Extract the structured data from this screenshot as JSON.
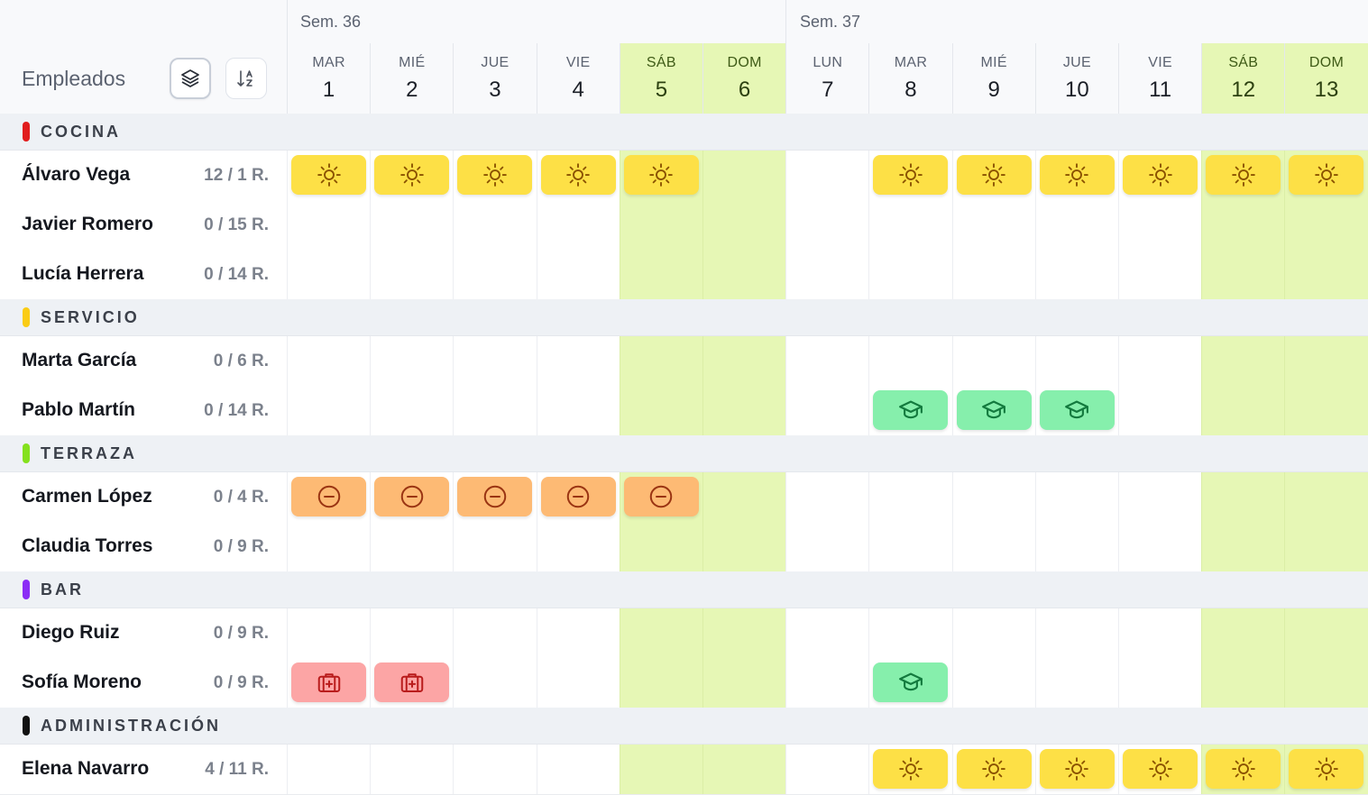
{
  "colors": {
    "weekend": "#e6f7b5",
    "vacation": "#fde046",
    "training": "#86efac",
    "absence": "#fdba74",
    "sick": "#fca5a5"
  },
  "icons": {
    "vacation": "sun-icon",
    "training": "graduation-cap-icon",
    "absence": "minus-circle-icon",
    "sick": "medical-kit-icon"
  },
  "header": {
    "employees_label": "Empleados",
    "group_toggle_icon": "layers-icon",
    "sort_icon": "sort-alpha-icon"
  },
  "weeks": [
    {
      "label": "Sem. 36"
    },
    {
      "label": "Sem. 37"
    }
  ],
  "days": [
    {
      "name": "MAR",
      "num": "1",
      "weekend": false
    },
    {
      "name": "MIÉ",
      "num": "2",
      "weekend": false
    },
    {
      "name": "JUE",
      "num": "3",
      "weekend": false
    },
    {
      "name": "VIE",
      "num": "4",
      "weekend": false
    },
    {
      "name": "SÁB",
      "num": "5",
      "weekend": true
    },
    {
      "name": "DOM",
      "num": "6",
      "weekend": true
    },
    {
      "name": "LUN",
      "num": "7",
      "weekend": false
    },
    {
      "name": "MAR",
      "num": "8",
      "weekend": false
    },
    {
      "name": "MIÉ",
      "num": "9",
      "weekend": false
    },
    {
      "name": "JUE",
      "num": "10",
      "weekend": false
    },
    {
      "name": "VIE",
      "num": "11",
      "weekend": false
    },
    {
      "name": "SÁB",
      "num": "12",
      "weekend": true
    },
    {
      "name": "DOM",
      "num": "13",
      "weekend": true
    }
  ],
  "groups": [
    {
      "name": "COCINA",
      "color": "#e11d1d",
      "employees": [
        {
          "name": "Álvaro Vega",
          "count": "12 / 1 R.",
          "cells": [
            "vacation",
            "vacation",
            "vacation",
            "vacation",
            "vacation",
            "",
            "",
            "vacation",
            "vacation",
            "vacation",
            "vacation",
            "vacation",
            "vacation"
          ]
        },
        {
          "name": "Javier Romero",
          "count": "0 / 15 R.",
          "cells": [
            "",
            "",
            "",
            "",
            "",
            "",
            "",
            "",
            "",
            "",
            "",
            "",
            ""
          ]
        },
        {
          "name": "Lucía Herrera",
          "count": "0 / 14 R.",
          "cells": [
            "",
            "",
            "",
            "",
            "",
            "",
            "",
            "",
            "",
            "",
            "",
            "",
            ""
          ]
        }
      ]
    },
    {
      "name": "SERVICIO",
      "color": "#facc15",
      "employees": [
        {
          "name": "Marta García",
          "count": "0 / 6 R.",
          "cells": [
            "",
            "",
            "",
            "",
            "",
            "",
            "",
            "",
            "",
            "",
            "",
            "",
            ""
          ]
        },
        {
          "name": "Pablo Martín",
          "count": "0 / 14 R.",
          "cells": [
            "",
            "",
            "",
            "",
            "",
            "",
            "",
            "training",
            "training",
            "training",
            "",
            "",
            ""
          ]
        }
      ]
    },
    {
      "name": "TERRAZA",
      "color": "#84e11d",
      "employees": [
        {
          "name": "Carmen López",
          "count": "0 / 4 R.",
          "cells": [
            "absence",
            "absence",
            "absence",
            "absence",
            "absence",
            "",
            "",
            "",
            "",
            "",
            "",
            "",
            ""
          ]
        },
        {
          "name": "Claudia Torres",
          "count": "0 / 9 R.",
          "cells": [
            "",
            "",
            "",
            "",
            "",
            "",
            "",
            "",
            "",
            "",
            "",
            "",
            ""
          ]
        }
      ]
    },
    {
      "name": "BAR",
      "color": "#8b2cf5",
      "employees": [
        {
          "name": "Diego Ruiz",
          "count": "0 / 9 R.",
          "cells": [
            "",
            "",
            "",
            "",
            "",
            "",
            "",
            "",
            "",
            "",
            "",
            "",
            ""
          ]
        },
        {
          "name": "Sofía Moreno",
          "count": "0 / 9 R.",
          "cells": [
            "sick",
            "sick",
            "",
            "",
            "",
            "",
            "",
            "training",
            "",
            "",
            "",
            "",
            ""
          ]
        }
      ]
    },
    {
      "name": "ADMINISTRACIÓN",
      "color": "#111111",
      "employees": [
        {
          "name": "Elena Navarro",
          "count": "4 / 11 R.",
          "cells": [
            "",
            "",
            "",
            "",
            "",
            "",
            "",
            "vacation",
            "vacation",
            "vacation",
            "vacation",
            "vacation",
            "vacation"
          ]
        }
      ]
    }
  ]
}
